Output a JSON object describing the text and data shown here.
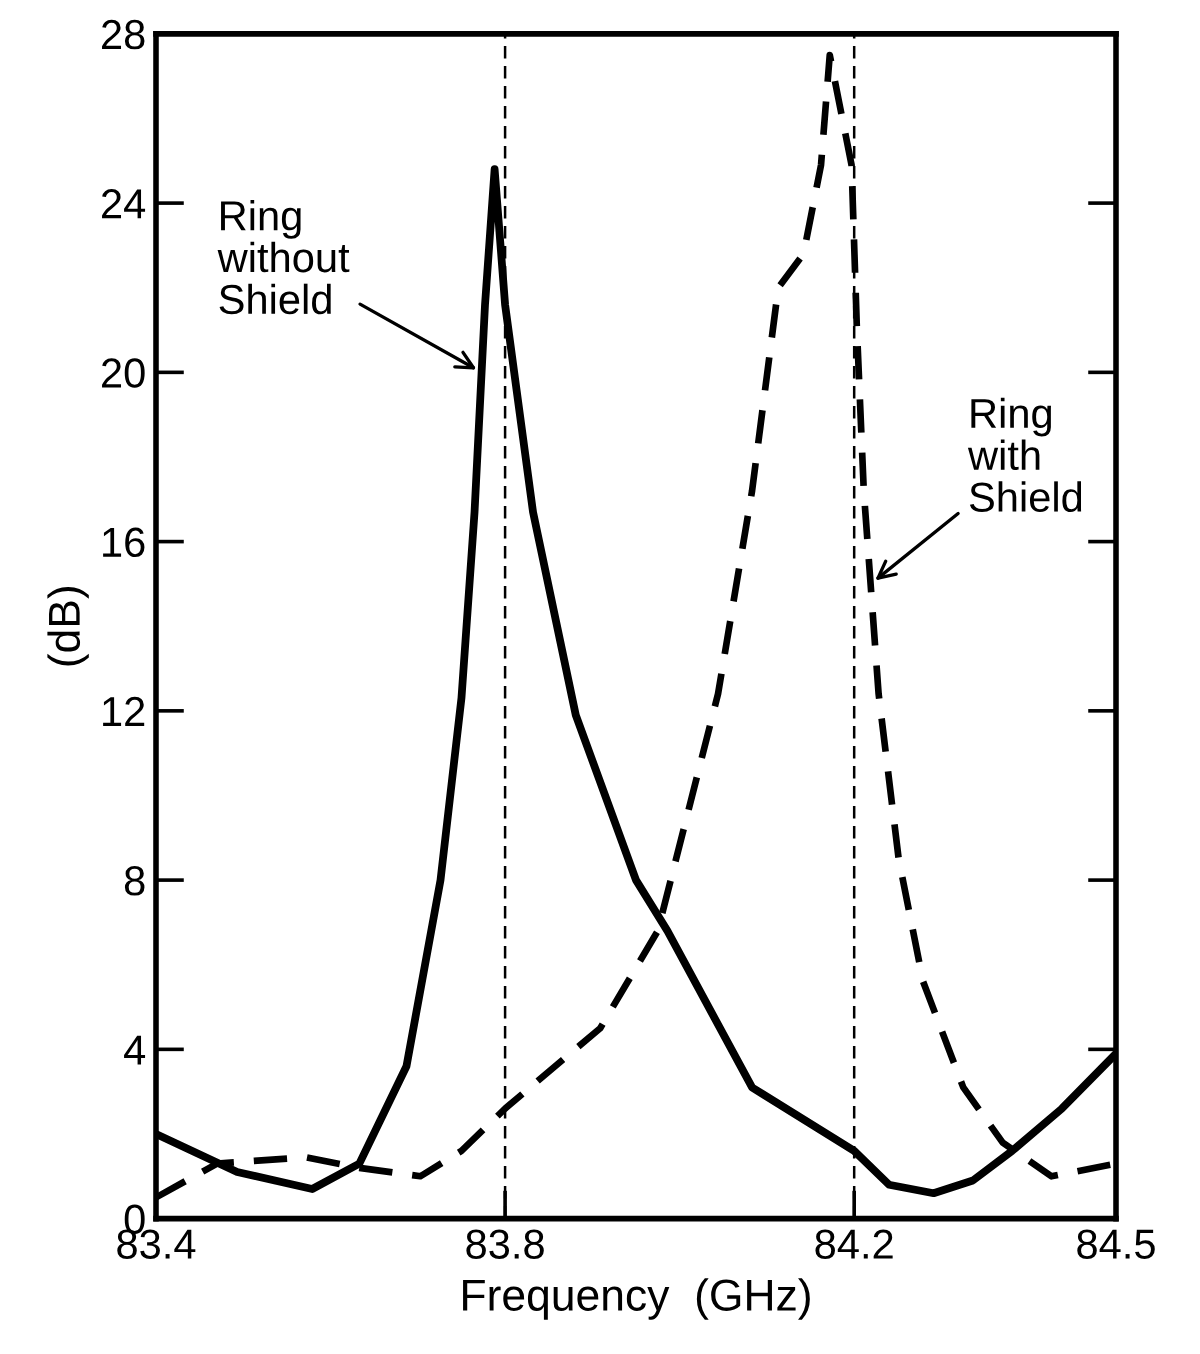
{
  "chart_data": {
    "type": "line",
    "xlabel": "Frequency  (GHz)",
    "ylabel": "(dB)",
    "xlim": [
      83.4,
      84.5
    ],
    "xticks": [
      83.4,
      83.8,
      84.2,
      84.5
    ],
    "ylim": [
      0,
      28
    ],
    "yticks": [
      0,
      4,
      8,
      12,
      16,
      20,
      24,
      28
    ],
    "grid": false,
    "marker": "none",
    "series": [
      {
        "color": "#000000",
        "line_style": "solid",
        "x": [
          83.4,
          83.493,
          83.579,
          83.633,
          83.687,
          83.726,
          83.75,
          83.765,
          83.777,
          83.788,
          83.8,
          83.832,
          83.881,
          83.95,
          83.986,
          84.083,
          84.2,
          84.24,
          84.291,
          84.336,
          84.381,
          84.438,
          84.5
        ],
        "values": [
          2.0,
          1.1,
          0.7,
          1.3,
          3.6,
          8.0,
          12.3,
          16.7,
          21.6,
          24.8,
          21.6,
          16.7,
          11.9,
          8.0,
          6.8,
          3.1,
          1.6,
          0.8,
          0.6,
          0.9,
          1.6,
          2.6,
          3.9
        ]
      },
      {
        "color": "#000000",
        "line_style": "dashed",
        "x": [
          83.4,
          83.47,
          83.571,
          83.633,
          83.703,
          83.75,
          83.8,
          83.909,
          83.975,
          84.044,
          84.083,
          84.113,
          84.142,
          84.162,
          84.172,
          84.197,
          84.203,
          84.211,
          84.228,
          84.251,
          84.279,
          84.325,
          84.37,
          84.426,
          84.5
        ],
        "values": [
          0.5,
          1.3,
          1.45,
          1.2,
          1.0,
          1.6,
          2.6,
          4.5,
          6.8,
          12.4,
          17.2,
          22.0,
          22.8,
          24.9,
          27.5,
          24.9,
          21.1,
          17.2,
          12.4,
          8.5,
          5.6,
          3.1,
          1.8,
          1.0,
          1.3
        ]
      }
    ],
    "ref_lines": [
      {
        "axis": "x",
        "value": 83.8,
        "line_style": "dashed",
        "color": "#000000"
      },
      {
        "axis": "x",
        "value": 84.2,
        "line_style": "dashed",
        "color": "#000000"
      }
    ],
    "annotations": [
      {
        "text": "Ring\nwithout\nShield",
        "x": 83.773,
        "y": 20
      },
      {
        "text": "Ring\nwith\nShield",
        "x": 84.219,
        "y": 15
      }
    ]
  }
}
